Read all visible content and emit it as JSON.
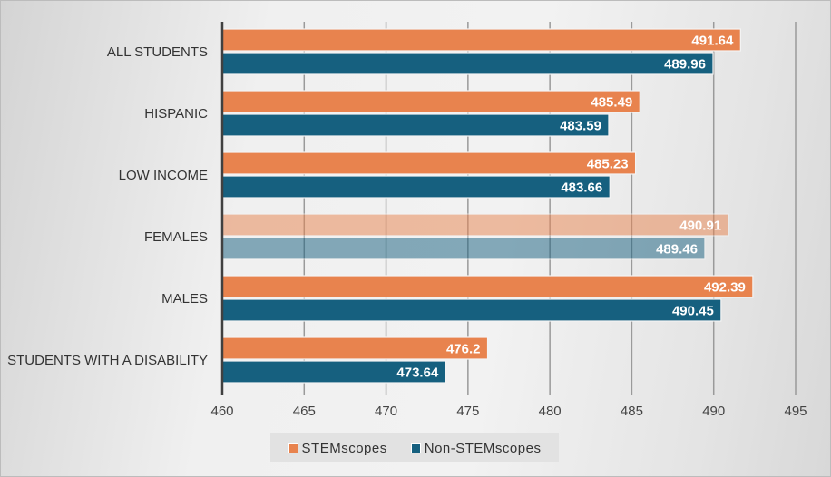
{
  "chart_data": {
    "type": "bar",
    "orientation": "horizontal",
    "categories": [
      "ALL STUDENTS",
      "HISPANIC",
      "LOW INCOME",
      "FEMALES",
      "MALES",
      "STUDENTS WITH A DISABILITY"
    ],
    "series": [
      {
        "name": "STEMscopes",
        "color": "#E8834E",
        "values": [
          491.64,
          485.49,
          485.23,
          490.91,
          492.39,
          476.2
        ],
        "labels": [
          "491.64",
          "485.49",
          "485.23",
          "490.91",
          "492.39",
          "476.2"
        ]
      },
      {
        "name": "Non-STEMscopes",
        "color": "#16607F",
        "values": [
          489.96,
          483.59,
          483.66,
          489.46,
          490.45,
          473.64
        ],
        "labels": [
          "489.96",
          "483.59",
          "483.66",
          "489.46",
          "490.45",
          "473.64"
        ]
      }
    ],
    "faded": [
      false,
      false,
      false,
      true,
      false,
      false
    ],
    "xlim": [
      460,
      495
    ],
    "xticks": [
      "460",
      "465",
      "470",
      "475",
      "480",
      "485",
      "490",
      "495"
    ],
    "grid": true,
    "legend_position": "bottom"
  }
}
